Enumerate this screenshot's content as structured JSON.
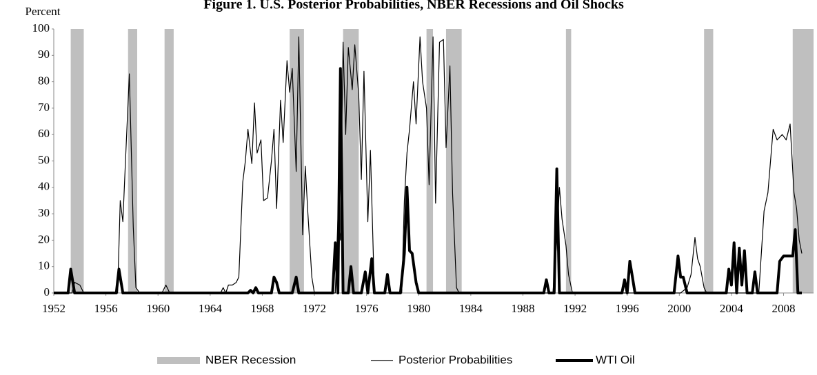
{
  "chart_data": {
    "type": "line",
    "title": "Figure 1. U.S. Posterior Probabilities, NBER Recessions and Oil Shocks",
    "y_label": "Percent",
    "xlim": [
      1952,
      2010.3
    ],
    "xticks": [
      1952,
      1956,
      1960,
      1964,
      1968,
      1972,
      1976,
      1980,
      1984,
      1988,
      1992,
      1996,
      2000,
      2004,
      2008
    ],
    "ylim": [
      0,
      100
    ],
    "yticks": [
      0,
      10,
      20,
      30,
      40,
      50,
      60,
      70,
      80,
      90,
      100
    ],
    "grid": false,
    "legend": "bottom",
    "recessions": {
      "name": "NBER Recession",
      "color": "#bfbfbf",
      "ranges": [
        [
          1953.3,
          1954.3
        ],
        [
          1957.7,
          1958.4
        ],
        [
          1960.5,
          1961.2
        ],
        [
          1970.1,
          1971.2
        ],
        [
          1974.2,
          1975.4
        ],
        [
          1980.6,
          1981.1
        ],
        [
          1982.1,
          1983.3
        ],
        [
          1991.3,
          1991.7
        ],
        [
          2001.9,
          2002.6
        ],
        [
          2008.7,
          2010.3
        ]
      ]
    },
    "series": [
      {
        "name": "Posterior Probabilities",
        "color": "#000000",
        "width": 1.2,
        "x": [
          1952,
          1953.4,
          1953.6,
          1954.0,
          1954.3,
          1956.9,
          1957.1,
          1957.3,
          1957.5,
          1957.8,
          1958.1,
          1958.3,
          1958.6,
          1960.3,
          1960.6,
          1960.9,
          1964.8,
          1965.0,
          1965.2,
          1965.4,
          1965.7,
          1966.0,
          1966.2,
          1966.5,
          1966.7,
          1966.9,
          1967.2,
          1967.4,
          1967.6,
          1967.9,
          1968.1,
          1968.4,
          1968.7,
          1968.9,
          1969.1,
          1969.4,
          1969.6,
          1969.9,
          1970.1,
          1970.3,
          1970.6,
          1970.8,
          1971.1,
          1971.3,
          1971.5,
          1971.8,
          1972.0,
          1973.6,
          1973.8,
          1974.0,
          1974.2,
          1974.4,
          1974.6,
          1974.9,
          1975.1,
          1975.4,
          1975.6,
          1975.8,
          1976.1,
          1976.3,
          1976.6,
          1978.7,
          1978.9,
          1979.1,
          1979.3,
          1979.6,
          1979.8,
          1980.1,
          1980.3,
          1980.6,
          1980.8,
          1981.1,
          1981.3,
          1981.6,
          1981.9,
          1982.1,
          1982.4,
          1982.6,
          1982.9,
          1983.1,
          1990.3,
          1990.6,
          1990.8,
          1991.0,
          1991.3,
          1991.5,
          1991.8,
          2000.1,
          2000.6,
          2000.9,
          2001.2,
          2001.4,
          2001.6,
          2001.9,
          2002.1,
          2006.1,
          2006.5,
          2006.8,
          2007.2,
          2007.5,
          2007.9,
          2008.2,
          2008.5,
          2008.8,
          2009.0,
          2009.2,
          2009.4
        ],
        "values": [
          0,
          0,
          4,
          3,
          0,
          0,
          35,
          27,
          50,
          83,
          25,
          2,
          0,
          0,
          3,
          0,
          0,
          2,
          0,
          3,
          3,
          4,
          6,
          42,
          50,
          62,
          49,
          72,
          53,
          58,
          35,
          36,
          50,
          62,
          32,
          73,
          57,
          88,
          76,
          85,
          46,
          97,
          22,
          48,
          30,
          6,
          0,
          0,
          28,
          20,
          95,
          60,
          93,
          77,
          94,
          75,
          43,
          84,
          27,
          54,
          0,
          0,
          35,
          53,
          62,
          80,
          64,
          97,
          80,
          70,
          41,
          97,
          34,
          95,
          96,
          55,
          86,
          38,
          2,
          0,
          0,
          20,
          40,
          28,
          18,
          7,
          0,
          0,
          2,
          7,
          21,
          13,
          10,
          2,
          0,
          0,
          31,
          38,
          62,
          58,
          60,
          58,
          64,
          38,
          32,
          20,
          15
        ]
      },
      {
        "name": "WTI Oil",
        "color": "#000000",
        "width": 4,
        "x": [
          1952,
          1953.1,
          1953.3,
          1953.6,
          1956.8,
          1957.0,
          1957.3,
          1966.9,
          1967.1,
          1967.3,
          1967.5,
          1967.7,
          1968.7,
          1968.9,
          1969.1,
          1969.3,
          1970.3,
          1970.6,
          1970.8,
          1973.4,
          1973.6,
          1973.8,
          1974.0,
          1974.2,
          1974.6,
          1974.8,
          1975.0,
          1975.6,
          1975.9,
          1976.1,
          1976.4,
          1976.6,
          1977.4,
          1977.6,
          1977.8,
          1978.6,
          1978.9,
          1979.1,
          1979.3,
          1979.5,
          1979.8,
          1980.0,
          1989.6,
          1989.8,
          1990.0,
          1990.4,
          1990.6,
          1990.8,
          1995.6,
          1995.8,
          1996.0,
          1996.2,
          1996.4,
          1996.6,
          1999.6,
          1999.9,
          2000.1,
          2000.3,
          2000.6,
          2003.6,
          2003.8,
          2004.0,
          2004.2,
          2004.4,
          2004.6,
          2004.8,
          2005.0,
          2005.2,
          2005.6,
          2005.8,
          2006.0,
          2007.5,
          2007.7,
          2008.0,
          2008.4,
          2008.7,
          2008.9,
          2009.1,
          2009.4
        ],
        "values": [
          0,
          0,
          9,
          0,
          0,
          9,
          0,
          0,
          1,
          0,
          2,
          0,
          0,
          6,
          4,
          0,
          0,
          6,
          0,
          0,
          19,
          0,
          85,
          0,
          0,
          10,
          0,
          0,
          8,
          0,
          13,
          0,
          0,
          7,
          0,
          0,
          15,
          40,
          16,
          15,
          4,
          0,
          0,
          5,
          0,
          0,
          47,
          0,
          0,
          5,
          0,
          12,
          6,
          0,
          0,
          14,
          6,
          6,
          0,
          0,
          9,
          3,
          19,
          0,
          17,
          3,
          16,
          0,
          0,
          8,
          0,
          0,
          12,
          14,
          14,
          14,
          24,
          0,
          0
        ]
      }
    ]
  }
}
